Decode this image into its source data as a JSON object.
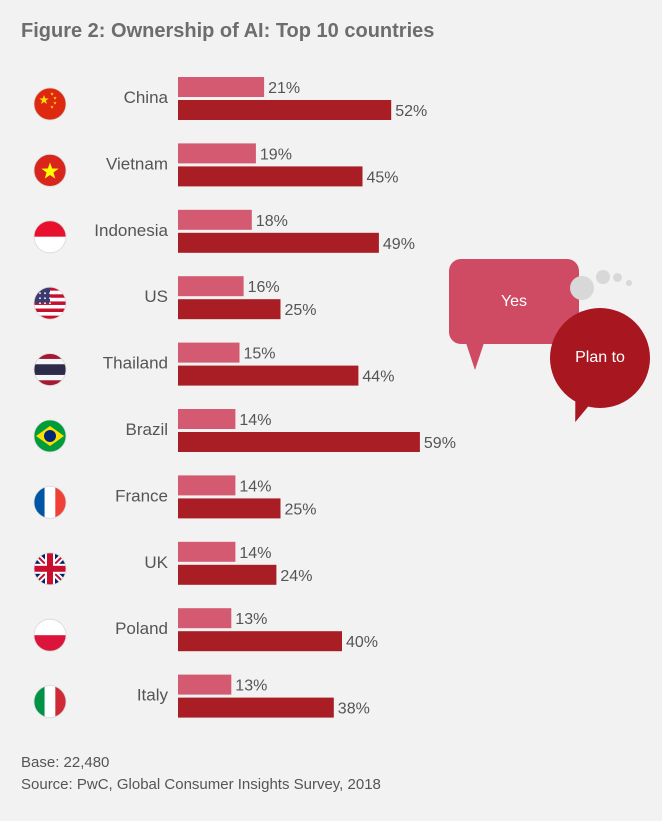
{
  "title": "Figure 2: Ownership of AI: Top 10 countries",
  "footer": {
    "base": "Base: 22,480",
    "source": "Source: PwC, Global Consumer Insights Survey, 2018"
  },
  "legend": {
    "yes": "Yes",
    "plan": "Plan to"
  },
  "colors": {
    "yes": "#d35a70",
    "plan": "#a81e24"
  },
  "chart_data": {
    "type": "bar",
    "orientation": "horizontal",
    "categories": [
      "China",
      "Vietnam",
      "Indonesia",
      "US",
      "Thailand",
      "Brazil",
      "France",
      "UK",
      "Poland",
      "Italy"
    ],
    "series": [
      {
        "name": "Yes",
        "values": [
          21,
          19,
          18,
          16,
          15,
          14,
          14,
          14,
          13,
          13
        ]
      },
      {
        "name": "Plan to",
        "values": [
          52,
          45,
          49,
          25,
          44,
          59,
          25,
          24,
          40,
          38
        ]
      }
    ],
    "value_suffix": "%",
    "legend_position": "right",
    "flags": [
      "china-flag-icon",
      "vietnam-flag-icon",
      "indonesia-flag-icon",
      "us-flag-icon",
      "thailand-flag-icon",
      "brazil-flag-icon",
      "france-flag-icon",
      "uk-flag-icon",
      "poland-flag-icon",
      "italy-flag-icon"
    ]
  }
}
